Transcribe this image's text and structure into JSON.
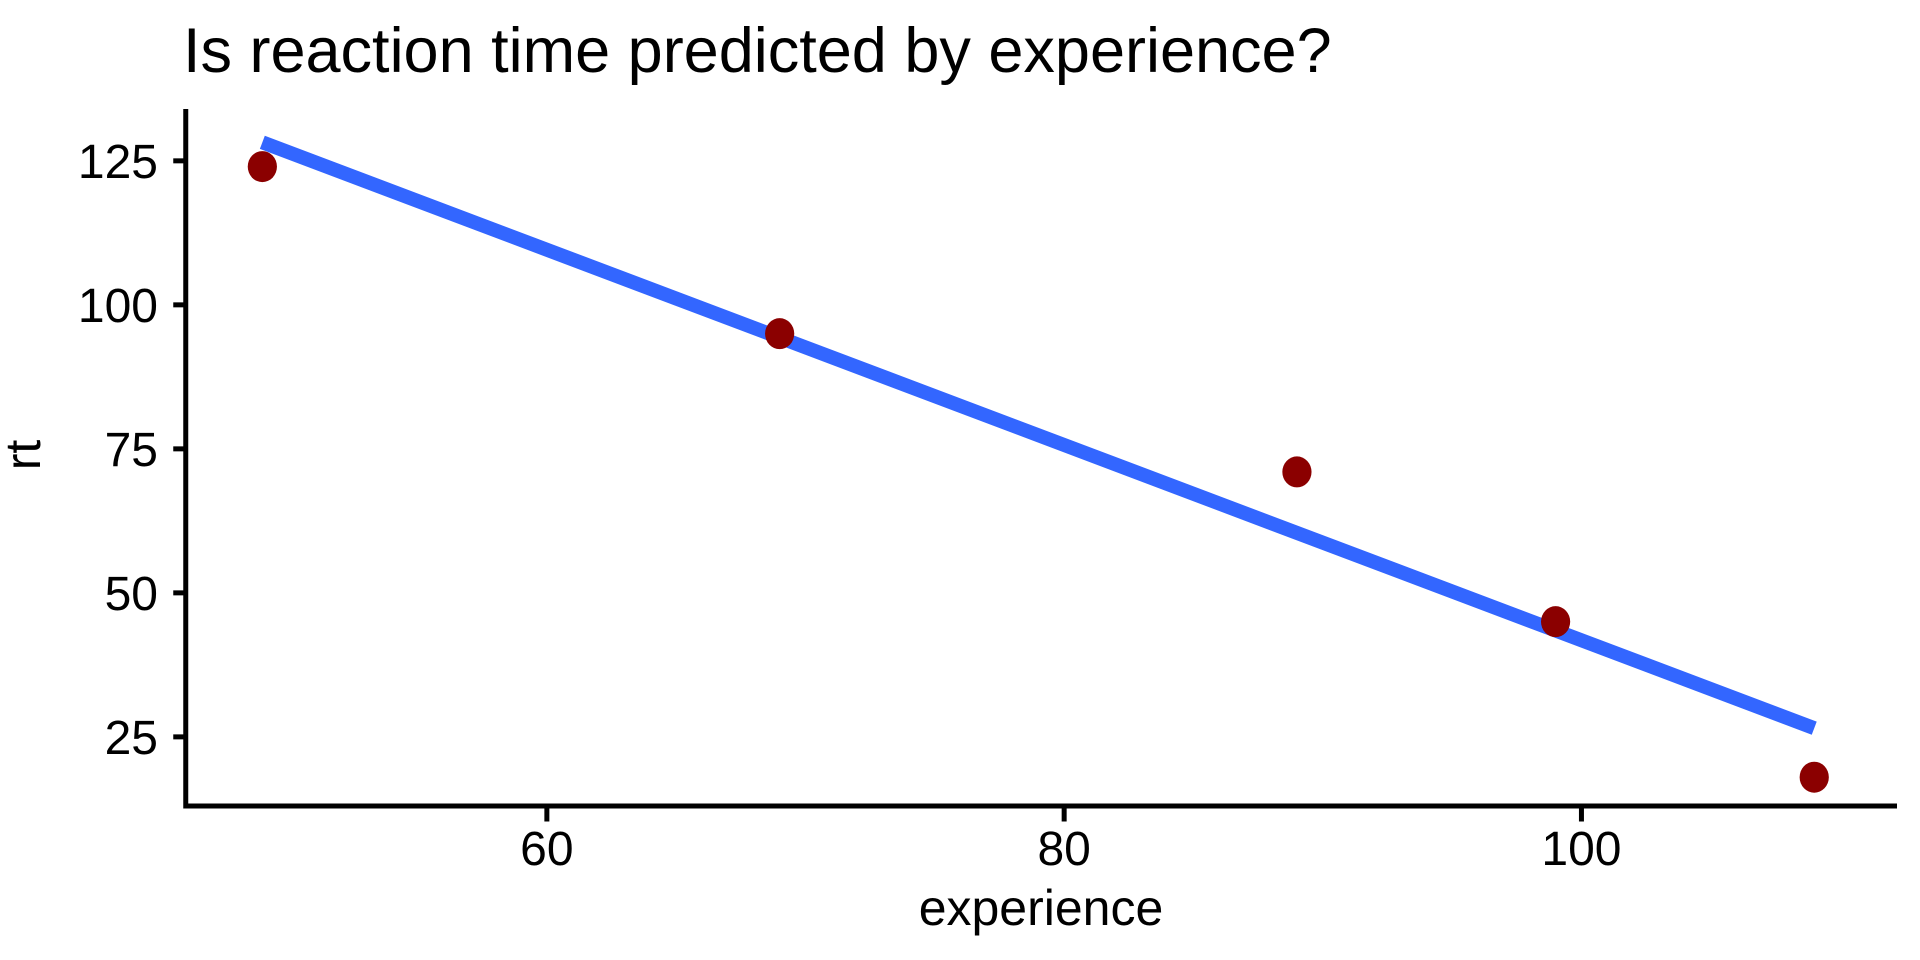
{
  "chart_data": {
    "type": "scatter",
    "title": "Is reaction time predicted by experience?",
    "xlabel": "experience",
    "ylabel": "rt",
    "points": [
      {
        "experience": 49,
        "rt": 124
      },
      {
        "experience": 69,
        "rt": 95
      },
      {
        "experience": 89,
        "rt": 71
      },
      {
        "experience": 99,
        "rt": 45
      },
      {
        "experience": 109,
        "rt": 18
      }
    ],
    "regression_line": {
      "intercept": 211.27,
      "slope": -1.695,
      "x_start": 49,
      "x_end": 109,
      "se_band": false
    },
    "x_ticks": [
      60,
      80,
      100
    ],
    "y_ticks": [
      25,
      50,
      75,
      100,
      125
    ],
    "xlim": [
      46.0,
      112.2
    ],
    "ylim": [
      13.0,
      134.0
    ],
    "grid": false,
    "legend": "none",
    "colors": {
      "point": "#8B0000",
      "line": "#3366FF",
      "axis": "#000000",
      "text": "#000000",
      "background": "#FFFFFF"
    }
  }
}
